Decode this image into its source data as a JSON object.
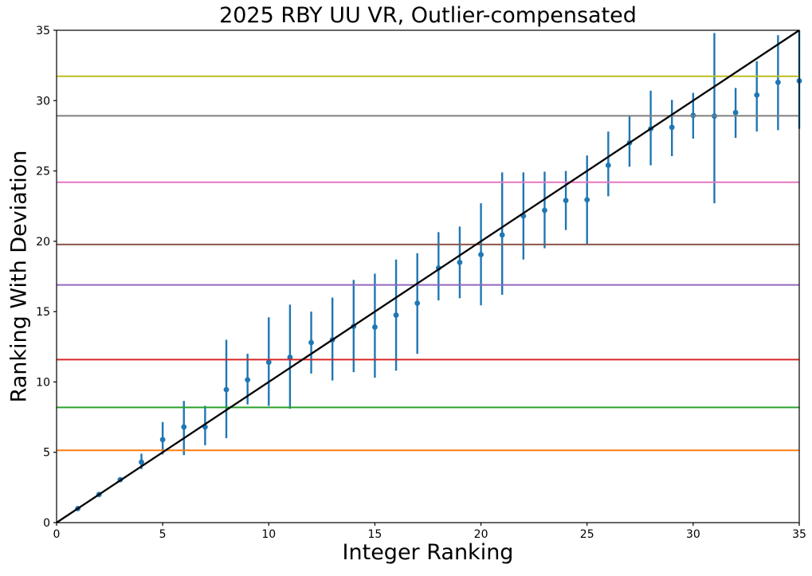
{
  "chart_data": {
    "type": "scatter",
    "title": "2025 RBY UU VR, Outlier-compensated",
    "xlabel": "Integer Ranking",
    "ylabel": "Ranking With Deviation",
    "xlim": [
      0,
      35
    ],
    "ylim": [
      0,
      35
    ],
    "xticks": [
      0,
      5,
      10,
      15,
      20,
      25,
      30,
      35
    ],
    "yticks": [
      0,
      5,
      10,
      15,
      20,
      25,
      30,
      35
    ],
    "grid": false,
    "legend": "none",
    "point_color": "#1f77b4",
    "identity_line": {
      "name": "y-equals-x",
      "color": "#000000",
      "from": [
        0,
        0
      ],
      "to": [
        35,
        35
      ]
    },
    "hlines": [
      {
        "name": "orange-threshold",
        "y": 5.14,
        "color": "#ff7f0e"
      },
      {
        "name": "green-threshold",
        "y": 8.19,
        "color": "#2ca02c"
      },
      {
        "name": "red-threshold",
        "y": 11.59,
        "color": "#d62728"
      },
      {
        "name": "purple-threshold",
        "y": 16.9,
        "color": "#9467bd"
      },
      {
        "name": "brown-threshold",
        "y": 19.77,
        "color": "#8c564b"
      },
      {
        "name": "pink-threshold",
        "y": 24.2,
        "color": "#e377c2"
      },
      {
        "name": "gray-threshold",
        "y": 28.92,
        "color": "#7f7f7f"
      },
      {
        "name": "olive-threshold",
        "y": 31.73,
        "color": "#bcbd22"
      }
    ],
    "series": [
      {
        "name": "ranking-with-deviation",
        "color": "#1f77b4",
        "points": [
          {
            "x": 1,
            "y": 1.0,
            "lo": 1.0,
            "hi": 1.0
          },
          {
            "x": 2,
            "y": 2.0,
            "lo": 2.0,
            "hi": 2.0
          },
          {
            "x": 3,
            "y": 3.05,
            "lo": 3.05,
            "hi": 3.05
          },
          {
            "x": 4,
            "y": 4.3,
            "lo": 3.8,
            "hi": 4.9
          },
          {
            "x": 5,
            "y": 5.9,
            "lo": 4.85,
            "hi": 7.15
          },
          {
            "x": 6,
            "y": 6.8,
            "lo": 4.8,
            "hi": 8.65
          },
          {
            "x": 7,
            "y": 6.8,
            "lo": 5.5,
            "hi": 8.3
          },
          {
            "x": 8,
            "y": 9.45,
            "lo": 6.0,
            "hi": 13.0
          },
          {
            "x": 9,
            "y": 10.15,
            "lo": 8.4,
            "hi": 12.0
          },
          {
            "x": 10,
            "y": 11.4,
            "lo": 8.3,
            "hi": 14.6
          },
          {
            "x": 11,
            "y": 11.75,
            "lo": 8.1,
            "hi": 15.5
          },
          {
            "x": 12,
            "y": 12.8,
            "lo": 10.6,
            "hi": 15.0
          },
          {
            "x": 13,
            "y": 13.0,
            "lo": 10.1,
            "hi": 16.0
          },
          {
            "x": 14,
            "y": 13.95,
            "lo": 10.7,
            "hi": 17.25
          },
          {
            "x": 15,
            "y": 13.9,
            "lo": 10.3,
            "hi": 17.7
          },
          {
            "x": 16,
            "y": 14.75,
            "lo": 10.8,
            "hi": 18.7
          },
          {
            "x": 17,
            "y": 15.6,
            "lo": 12.0,
            "hi": 19.15
          },
          {
            "x": 18,
            "y": 18.1,
            "lo": 15.8,
            "hi": 20.65
          },
          {
            "x": 19,
            "y": 18.5,
            "lo": 15.95,
            "hi": 21.05
          },
          {
            "x": 20,
            "y": 19.05,
            "lo": 15.45,
            "hi": 22.7
          },
          {
            "x": 21,
            "y": 20.45,
            "lo": 16.2,
            "hi": 24.9
          },
          {
            "x": 22,
            "y": 21.8,
            "lo": 18.7,
            "hi": 24.9
          },
          {
            "x": 23,
            "y": 22.2,
            "lo": 19.5,
            "hi": 24.95
          },
          {
            "x": 24,
            "y": 22.9,
            "lo": 20.8,
            "hi": 25.0
          },
          {
            "x": 25,
            "y": 22.95,
            "lo": 19.8,
            "hi": 26.1
          },
          {
            "x": 26,
            "y": 25.4,
            "lo": 23.2,
            "hi": 27.8
          },
          {
            "x": 27,
            "y": 27.0,
            "lo": 25.3,
            "hi": 28.9
          },
          {
            "x": 28,
            "y": 28.0,
            "lo": 25.4,
            "hi": 30.7
          },
          {
            "x": 29,
            "y": 28.1,
            "lo": 26.05,
            "hi": 30.05
          },
          {
            "x": 30,
            "y": 28.95,
            "lo": 27.3,
            "hi": 30.55
          },
          {
            "x": 31,
            "y": 28.9,
            "lo": 22.7,
            "hi": 34.8
          },
          {
            "x": 32,
            "y": 29.15,
            "lo": 27.35,
            "hi": 30.9
          },
          {
            "x": 33,
            "y": 30.4,
            "lo": 27.8,
            "hi": 32.8
          },
          {
            "x": 34,
            "y": 31.3,
            "lo": 27.9,
            "hi": 34.65
          },
          {
            "x": 35,
            "y": 31.4,
            "lo": 28.0,
            "hi": 35.0
          }
        ]
      }
    ]
  }
}
